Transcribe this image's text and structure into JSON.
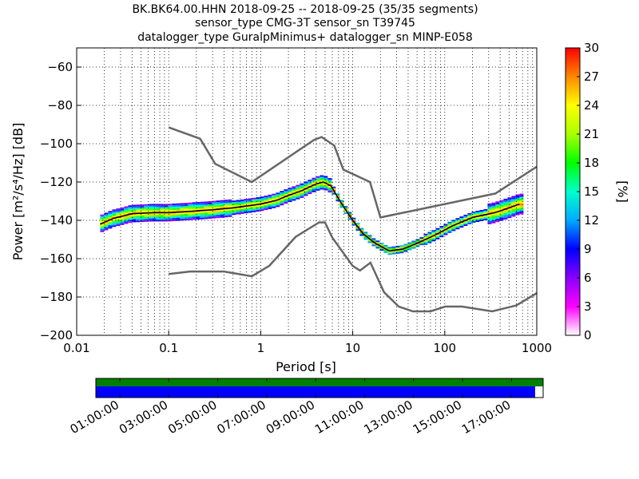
{
  "chart_data": {
    "type": "heatmap",
    "title_lines": [
      "BK.BK64.00.HHN   2018-09-25 -- 2018-09-25  (35/35 segments)",
      "sensor_type CMG-3T sensor_sn T39745",
      "datalogger_type GuralpMinimus+ datalogger_sn MINP-E058"
    ],
    "xlabel": "Period [s]",
    "ylabel": "Power [m²/s⁴/Hz] [dB]",
    "x_scale": "log",
    "xlim": [
      0.01,
      1000
    ],
    "ylim": [
      -200,
      -50
    ],
    "x_ticks": [
      0.01,
      0.1,
      1,
      10,
      100,
      1000
    ],
    "x_tick_labels": [
      "0.01",
      "0.1",
      "1",
      "10",
      "100",
      "1000"
    ],
    "y_ticks": [
      -200,
      -180,
      -160,
      -140,
      -120,
      -100,
      -80,
      -60
    ],
    "y_tick_labels": [
      "−200",
      "−180",
      "−160",
      "−140",
      "−120",
      "−100",
      "−80",
      "−60"
    ],
    "grid": "dotted, major and minor vertical; major horizontal",
    "colorbar": {
      "label": "[%]",
      "min": 0,
      "max": 30,
      "ticks": [
        0,
        3,
        6,
        9,
        12,
        15,
        18,
        21,
        24,
        27,
        30
      ],
      "tick_labels": [
        "0",
        "3",
        "6",
        "9",
        "12",
        "15",
        "18",
        "21",
        "24",
        "27",
        "30"
      ],
      "colormap": [
        "#ffffff",
        "#ff00ff",
        "#8800ff",
        "#0000ff",
        "#00aaff",
        "#00ffcc",
        "#00ff00",
        "#aaff00",
        "#ffff00",
        "#ff8800",
        "#ff0000"
      ]
    },
    "series": [
      {
        "role": "new-high-noise-model",
        "color": "#666666",
        "points": [
          [
            0.1,
            -91.5
          ],
          [
            0.22,
            -97.4
          ],
          [
            0.32,
            -110.5
          ],
          [
            0.8,
            -120
          ],
          [
            3.8,
            -98
          ],
          [
            4.6,
            -96.5
          ],
          [
            6.3,
            -101
          ],
          [
            7.9,
            -113.5
          ],
          [
            15.4,
            -120
          ],
          [
            20,
            -138.5
          ],
          [
            354.8,
            -126
          ],
          [
            1000,
            -112
          ]
        ]
      },
      {
        "role": "new-low-noise-model",
        "color": "#666666",
        "points": [
          [
            0.1,
            -168
          ],
          [
            0.17,
            -166.7
          ],
          [
            0.4,
            -166.7
          ],
          [
            0.8,
            -169.2
          ],
          [
            1.24,
            -163.7
          ],
          [
            2.4,
            -148.6
          ],
          [
            4.3,
            -141.1
          ],
          [
            5,
            -141.1
          ],
          [
            6,
            -149
          ],
          [
            10,
            -163.8
          ],
          [
            12,
            -166.2
          ],
          [
            15.6,
            -162.1
          ],
          [
            21.9,
            -177.5
          ],
          [
            31.6,
            -185
          ],
          [
            45,
            -187.5
          ],
          [
            70,
            -187.5
          ],
          [
            101,
            -185
          ],
          [
            154,
            -185
          ],
          [
            328,
            -187.5
          ],
          [
            600,
            -184.4
          ],
          [
            1000,
            -178
          ]
        ]
      },
      {
        "role": "median-psd",
        "color": "#000000",
        "points": [
          [
            0.018,
            -142
          ],
          [
            0.025,
            -139
          ],
          [
            0.04,
            -136.5
          ],
          [
            0.07,
            -136
          ],
          [
            0.1,
            -136
          ],
          [
            0.15,
            -135.5
          ],
          [
            0.3,
            -134.5
          ],
          [
            0.5,
            -133.5
          ],
          [
            1,
            -131.5
          ],
          [
            1.5,
            -129.5
          ],
          [
            2,
            -127
          ],
          [
            2.8,
            -124.5
          ],
          [
            4,
            -121
          ],
          [
            4.8,
            -120
          ],
          [
            5.8,
            -122
          ],
          [
            7.5,
            -131
          ],
          [
            10,
            -140
          ],
          [
            13,
            -147
          ],
          [
            17,
            -151.5
          ],
          [
            25,
            -156
          ],
          [
            35,
            -155
          ],
          [
            50,
            -152
          ],
          [
            80,
            -147.5
          ],
          [
            120,
            -143
          ],
          [
            200,
            -138.5
          ],
          [
            350,
            -136
          ],
          [
            500,
            -133.5
          ],
          [
            650,
            -131.5
          ]
        ]
      }
    ]
  },
  "timeline": {
    "tick_labels": [
      "01:00:00",
      "03:00:00",
      "05:00:00",
      "07:00:00",
      "09:00:00",
      "11:00:00",
      "13:00:00",
      "15:00:00",
      "17:00:00"
    ],
    "coverage_fraction": 0.982,
    "top_color": "#008000",
    "bottom_color": "#0000ff"
  }
}
